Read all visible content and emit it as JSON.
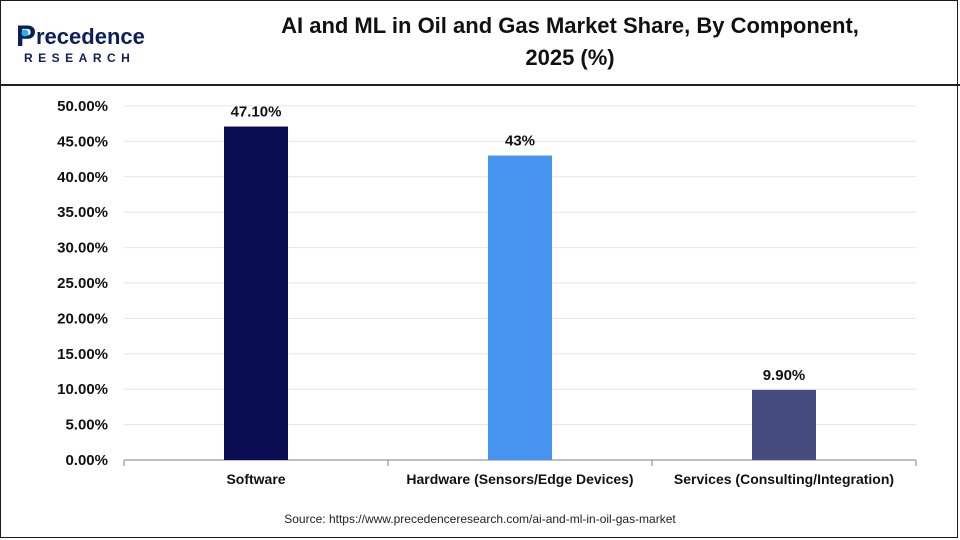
{
  "brand": {
    "name_top": "recedence",
    "name_initial": "P",
    "name_bottom": "RESEARCH",
    "colors": {
      "navy": "#0b1f5c",
      "cyan": "#23b3e6"
    }
  },
  "header": {
    "title_line1": "AI and ML in Oil and Gas Market Share, By Component,",
    "title_line2": "2025 (%)"
  },
  "chart_data": {
    "type": "bar",
    "categories": [
      "Software",
      "Hardware (Sensors/Edge Devices)",
      "Services (Consulting/Integration)"
    ],
    "values": [
      47.1,
      43,
      9.9
    ],
    "data_labels": [
      "47.10%",
      "43%",
      "9.90%"
    ],
    "bar_colors": [
      "#0a0d52",
      "#4594f0",
      "#454a7f"
    ],
    "ylim": [
      0,
      50
    ],
    "yticks": [
      0,
      5,
      10,
      15,
      20,
      25,
      30,
      35,
      40,
      45,
      50
    ],
    "ytick_labels": [
      "0.00%",
      "5.00%",
      "10.00%",
      "15.00%",
      "20.00%",
      "25.00%",
      "30.00%",
      "35.00%",
      "40.00%",
      "45.00%",
      "50.00%"
    ],
    "grid": true,
    "legend": false
  },
  "footer": {
    "source": "Source: https://www.precedenceresearch.com/ai-and-ml-in-oil-gas-market"
  }
}
